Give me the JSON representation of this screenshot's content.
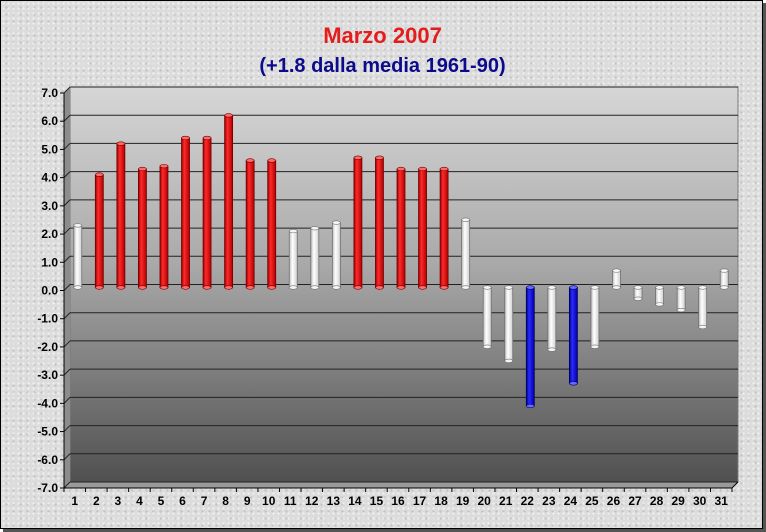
{
  "chart_data": {
    "type": "bar",
    "title": "Marzo 2007",
    "subtitle": "(+1.8 dalla media 1961-90)",
    "xlabel": "",
    "ylabel": "",
    "categories": [
      "1",
      "2",
      "3",
      "4",
      "5",
      "6",
      "7",
      "8",
      "9",
      "10",
      "11",
      "12",
      "13",
      "14",
      "15",
      "16",
      "17",
      "18",
      "19",
      "20",
      "21",
      "22",
      "23",
      "24",
      "25",
      "26",
      "27",
      "28",
      "29",
      "30",
      "31"
    ],
    "values": [
      2.2,
      4.0,
      5.1,
      4.2,
      4.3,
      5.3,
      5.3,
      6.1,
      4.5,
      4.5,
      2.0,
      2.1,
      2.3,
      4.6,
      4.6,
      4.2,
      4.2,
      4.2,
      2.4,
      -2.1,
      -2.6,
      -4.2,
      -2.2,
      -3.4,
      -2.1,
      0.6,
      -0.4,
      -0.6,
      -0.8,
      -1.4,
      0.6
    ],
    "ylim": [
      -7.0,
      7.0
    ],
    "yticks": [
      "7.0",
      "6.0",
      "5.0",
      "4.0",
      "3.0",
      "2.0",
      "1.0",
      "0.0",
      "-1.0",
      "-2.0",
      "-3.0",
      "-4.0",
      "-5.0",
      "-6.0",
      "-7.0"
    ],
    "grid": true,
    "colors": {
      "hot": "#e00000",
      "cold": "#1010d8",
      "normal": "#ffffff",
      "title": "#e41c1c",
      "subtitle": "#0b0b8c"
    },
    "thresholds": {
      "hot_above": 3.0,
      "cold_below": -3.0
    }
  }
}
